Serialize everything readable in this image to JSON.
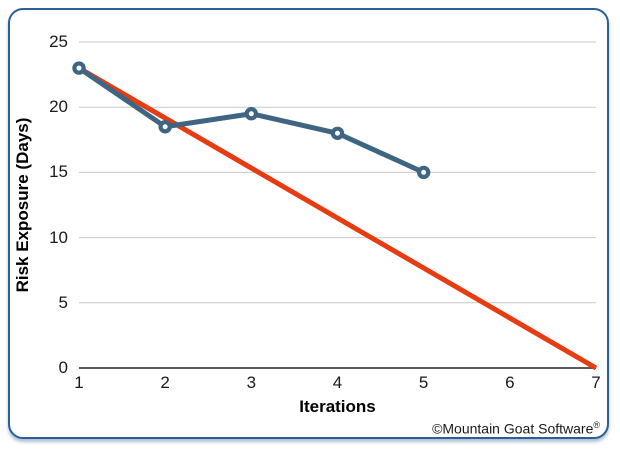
{
  "chart_data": {
    "type": "line",
    "title": "",
    "xlabel": "Iterations",
    "ylabel": "Risk Exposure (Days)",
    "xlim": [
      1,
      7
    ],
    "ylim": [
      0,
      25
    ],
    "xticks": [
      1,
      2,
      3,
      4,
      5,
      6,
      7
    ],
    "yticks": [
      0,
      5,
      10,
      15,
      20,
      25
    ],
    "grid": "horizontal",
    "legend": "none",
    "series": [
      {
        "name": "ideal-risk-burndown",
        "color": "#e73b12",
        "marker": "none",
        "line_width": 5,
        "x": [
          1,
          7
        ],
        "y": [
          23,
          0
        ]
      },
      {
        "name": "actual-risk-exposure",
        "color": "#3e6582",
        "marker": "circle-white-center",
        "line_width": 5,
        "x": [
          1,
          2,
          3,
          4,
          5
        ],
        "y": [
          23,
          18.5,
          19.5,
          18,
          15
        ]
      }
    ]
  },
  "footer": {
    "copyright_text": "©Mountain Goat Software",
    "registered_mark": "®"
  },
  "colors": {
    "frame_border": "#2a5f9c",
    "gridline": "#c9c9c9",
    "axis_line": "#595959",
    "tick_text": "#1a1a1a",
    "background": "#ffffff"
  }
}
